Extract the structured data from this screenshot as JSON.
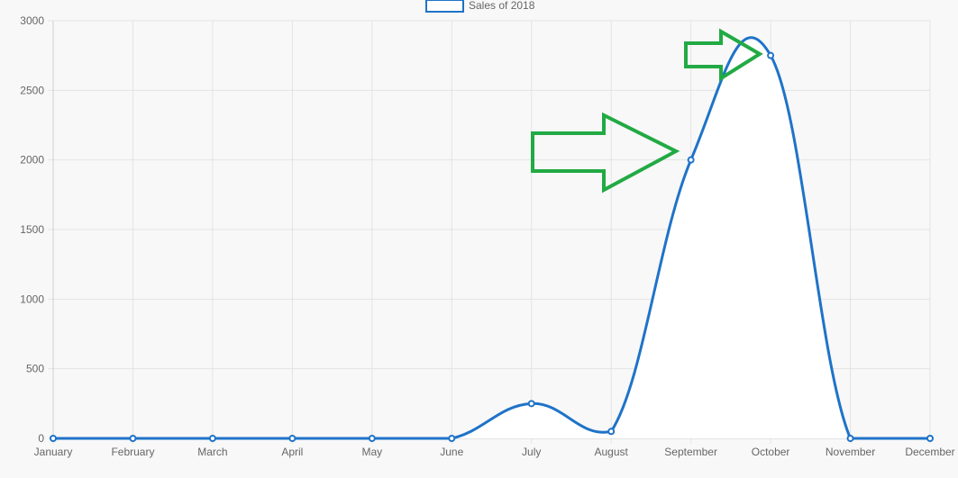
{
  "chart_data": {
    "type": "line",
    "categories": [
      "January",
      "February",
      "March",
      "April",
      "May",
      "June",
      "July",
      "August",
      "September",
      "October",
      "November",
      "December"
    ],
    "series": [
      {
        "name": "Sales of 2018",
        "values": [
          0,
          0,
          0,
          0,
          0,
          0,
          250,
          50,
          2000,
          2750,
          0,
          0
        ],
        "color": "#1f73c8",
        "fill": "#ffffff"
      }
    ],
    "ylim": [
      0,
      3000
    ],
    "yticks": [
      0,
      500,
      1000,
      1500,
      2000,
      2500,
      3000
    ],
    "grid": true,
    "legend_position": "top",
    "annotations": [
      {
        "type": "arrow",
        "color": "#22aa44",
        "points_to": "September"
      },
      {
        "type": "arrow",
        "color": "#22aa44",
        "points_to": "October"
      }
    ]
  },
  "colors": {
    "background": "#f8f8f8",
    "grid": "#e3e3e3",
    "axis": "#cfcfcf",
    "line": "#1f73c8",
    "annotation": "#22aa44"
  }
}
